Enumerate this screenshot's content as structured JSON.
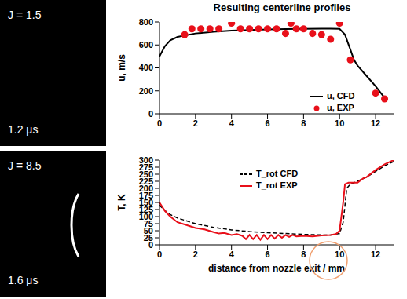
{
  "title": "Resulting centerline profiles",
  "images": [
    {
      "top_label": "J = 1.5",
      "bottom_label": "1.2 μs"
    },
    {
      "top_label": "J = 8.5",
      "bottom_label": "1.6 μs"
    }
  ],
  "chart_data": [
    {
      "type": "line",
      "x_label": "",
      "y_label": "u, m/s",
      "xlim": [
        0,
        13
      ],
      "xticks": [
        0,
        2,
        4,
        6,
        8,
        10,
        12
      ],
      "ylim": [
        0,
        800
      ],
      "yticks": [
        0,
        200,
        400,
        600,
        800
      ],
      "legend": "right",
      "series": [
        {
          "name": "u, CFD",
          "color": "#000000",
          "type": "line",
          "line_style": "solid",
          "marker": "none",
          "x": [
            0,
            0.3,
            0.6,
            1,
            2,
            3,
            4,
            5,
            6,
            7,
            8,
            9,
            9.5,
            10,
            10.3,
            10.6,
            10.8,
            11,
            11.5,
            12,
            12.5
          ],
          "values": [
            500,
            590,
            640,
            670,
            700,
            715,
            725,
            730,
            735,
            738,
            740,
            742,
            742,
            740,
            690,
            560,
            470,
            420,
            330,
            240,
            140
          ]
        },
        {
          "name": "u, EXP",
          "color": "#e8101a",
          "type": "scatter",
          "line_style": "none",
          "marker": "circle",
          "x": [
            1.4,
            1.8,
            2.3,
            2.8,
            3.3,
            4,
            4.5,
            5,
            5.5,
            6,
            6.5,
            7,
            7.3,
            7.6,
            8,
            8.5,
            9,
            9.5,
            10,
            10.6,
            12,
            12.5
          ],
          "values": [
            690,
            740,
            740,
            740,
            740,
            790,
            740,
            740,
            740,
            740,
            740,
            700,
            790,
            740,
            740,
            700,
            690,
            650,
            790,
            470,
            180,
            130
          ]
        }
      ]
    },
    {
      "type": "line",
      "x_label": "distance from nozzle exit / mm",
      "y_label": "T, K",
      "xlim": [
        0,
        13
      ],
      "xticks": [
        0,
        2,
        4,
        6,
        8,
        10,
        12
      ],
      "ylim": [
        0,
        300
      ],
      "yticks": [
        0,
        25,
        50,
        75,
        100,
        125,
        150,
        175,
        200,
        225,
        250,
        275,
        300
      ],
      "legend": "top",
      "series": [
        {
          "name": "T_rot CFD",
          "color": "#000000",
          "type": "line",
          "line_style": "dashed",
          "marker": "none",
          "x": [
            0,
            0.5,
            1,
            2,
            3,
            4,
            5,
            6,
            7,
            8,
            9,
            9.5,
            10,
            10.2,
            10.4,
            10.6,
            11,
            11.5,
            12,
            12.5,
            13
          ],
          "values": [
            140,
            110,
            95,
            75,
            62,
            53,
            47,
            43,
            40,
            37,
            35,
            35,
            40,
            80,
            200,
            215,
            225,
            240,
            260,
            280,
            295
          ]
        },
        {
          "name": "T_rot EXP",
          "color": "#e8101a",
          "type": "line",
          "line_style": "solid",
          "marker": "none",
          "x": [
            0,
            0.3,
            0.6,
            1,
            1.5,
            2,
            2.5,
            3,
            3.3,
            3.6,
            4,
            4.3,
            4.6,
            4.8,
            5,
            5.2,
            5.4,
            5.6,
            5.8,
            6,
            6.2,
            6.4,
            6.6,
            6.8,
            7,
            7.2,
            7.4,
            7.6,
            8,
            8.5,
            9,
            9.5,
            9.8,
            10,
            10.2,
            10.3,
            10.5,
            11,
            11.3,
            11.5,
            12,
            12.5,
            13
          ],
          "values": [
            150,
            120,
            100,
            80,
            70,
            60,
            55,
            45,
            40,
            42,
            35,
            38,
            32,
            20,
            35,
            20,
            35,
            18,
            35,
            20,
            35,
            22,
            35,
            25,
            35,
            28,
            35,
            30,
            32,
            30,
            33,
            35,
            38,
            50,
            150,
            215,
            220,
            220,
            235,
            240,
            265,
            285,
            300
          ]
        }
      ]
    }
  ]
}
